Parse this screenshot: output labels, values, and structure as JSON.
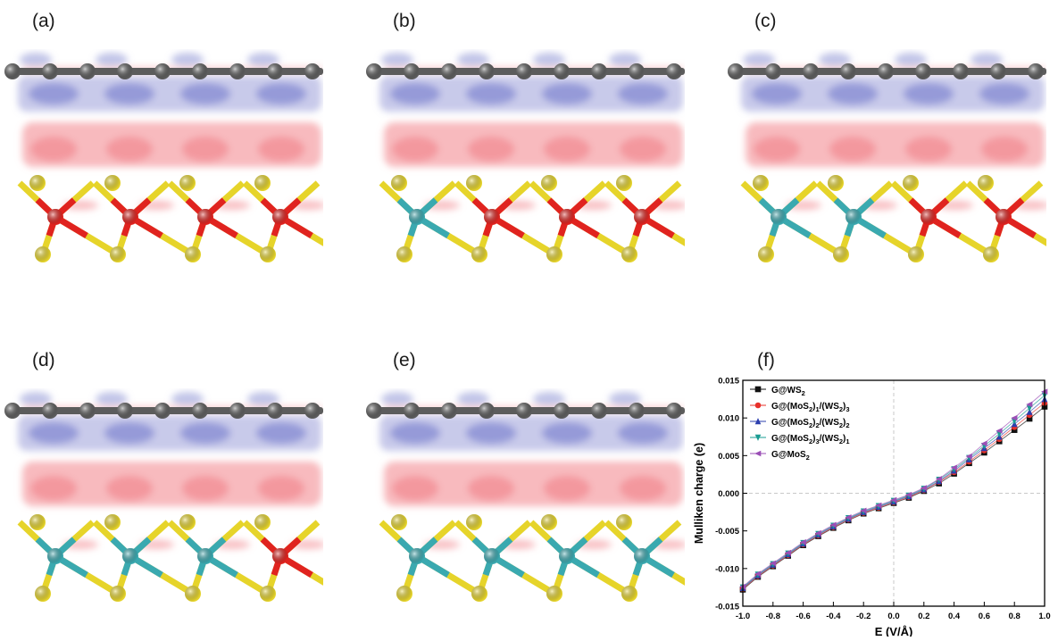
{
  "panels": [
    {
      "label": "(a)",
      "metal_sequence": [
        "Mo",
        "Mo",
        "Mo",
        "Mo"
      ]
    },
    {
      "label": "(b)",
      "metal_sequence": [
        "W",
        "Mo",
        "Mo",
        "Mo"
      ]
    },
    {
      "label": "(c)",
      "metal_sequence": [
        "W",
        "W",
        "Mo",
        "Mo"
      ]
    },
    {
      "label": "(d)",
      "metal_sequence": [
        "W",
        "W",
        "W",
        "Mo"
      ]
    },
    {
      "label": "(e)",
      "metal_sequence": [
        "W",
        "W",
        "W",
        "W"
      ]
    },
    {
      "label": "(f)"
    }
  ],
  "colors": {
    "carbon": "#5c5c5c",
    "sulfur": "#e6d42a",
    "molybdenum": "#e0231f",
    "tungsten": "#3aa9b0",
    "charge_depletion": "#9a9fd8",
    "charge_accumulation": "#f5a3a8"
  },
  "chart_data": {
    "type": "line",
    "xlabel": "E (V/Å)",
    "ylabel": "Mulliken charge (e)",
    "xlim": [
      -1.0,
      1.0
    ],
    "ylim": [
      -0.015,
      0.015
    ],
    "x_ticks": [
      "-1.0",
      "-0.8",
      "-0.6",
      "-0.4",
      "-0.2",
      "0.0",
      "0.2",
      "0.4",
      "0.6",
      "0.8",
      "1.0"
    ],
    "y_ticks": [
      "-0.015",
      "-0.010",
      "-0.005",
      "0.000",
      "0.005",
      "0.010",
      "0.015"
    ],
    "legend_position": "top-left",
    "x": [
      -1.0,
      -0.9,
      -0.8,
      -0.7,
      -0.6,
      -0.5,
      -0.4,
      -0.3,
      -0.2,
      -0.1,
      0.0,
      0.1,
      0.2,
      0.3,
      0.4,
      0.5,
      0.6,
      0.7,
      0.8,
      0.9,
      1.0
    ],
    "series": [
      {
        "name_parts": [
          [
            "G@WS",
            "n"
          ],
          [
            "2",
            "s"
          ]
        ],
        "marker": "square",
        "color": "#111111",
        "values": [
          -0.0128,
          -0.0111,
          -0.0097,
          -0.0083,
          -0.0069,
          -0.0057,
          -0.0046,
          -0.0036,
          -0.0027,
          -0.002,
          -0.0013,
          -0.0006,
          0.0003,
          0.0013,
          0.0026,
          0.004,
          0.0054,
          0.0069,
          0.0084,
          0.0099,
          0.0115
        ]
      },
      {
        "name_parts": [
          [
            "G@(MoS",
            "n"
          ],
          [
            "2",
            "s"
          ],
          [
            ")",
            "n"
          ],
          [
            "1",
            "s"
          ],
          [
            "/(WS",
            "n"
          ],
          [
            "2",
            "s"
          ],
          [
            ")",
            "n"
          ],
          [
            "3",
            "s"
          ]
        ],
        "marker": "circle",
        "color": "#e8302a",
        "values": [
          -0.0127,
          -0.011,
          -0.0096,
          -0.0082,
          -0.0068,
          -0.0056,
          -0.0045,
          -0.0035,
          -0.0026,
          -0.0019,
          -0.0012,
          -0.0005,
          0.0004,
          0.0015,
          0.0028,
          0.0042,
          0.0057,
          0.0072,
          0.0088,
          0.0104,
          0.012
        ]
      },
      {
        "name_parts": [
          [
            "G@(MoS",
            "n"
          ],
          [
            "2",
            "s"
          ],
          [
            ")",
            "n"
          ],
          [
            "2",
            "s"
          ],
          [
            "/(WS",
            "n"
          ],
          [
            "2",
            "s"
          ],
          [
            ")",
            "n"
          ],
          [
            "2",
            "s"
          ]
        ],
        "marker": "triangle-up",
        "color": "#2c3fae",
        "values": [
          -0.0126,
          -0.0109,
          -0.0095,
          -0.0081,
          -0.0067,
          -0.0055,
          -0.0044,
          -0.0034,
          -0.0025,
          -0.0018,
          -0.0011,
          -0.0004,
          0.0005,
          0.0016,
          0.003,
          0.0045,
          0.006,
          0.0075,
          0.0092,
          0.0108,
          0.0125
        ]
      },
      {
        "name_parts": [
          [
            "G@(MoS",
            "n"
          ],
          [
            "2",
            "s"
          ],
          [
            ")",
            "n"
          ],
          [
            "3",
            "s"
          ],
          [
            "/(WS",
            "n"
          ],
          [
            "2",
            "s"
          ],
          [
            ")",
            "n"
          ],
          [
            "1",
            "s"
          ]
        ],
        "marker": "triangle-down",
        "color": "#1a9c93",
        "values": [
          -0.0125,
          -0.0108,
          -0.0094,
          -0.008,
          -0.0066,
          -0.0054,
          -0.0043,
          -0.0033,
          -0.0024,
          -0.0017,
          -0.001,
          -0.0003,
          0.0006,
          0.0018,
          0.0032,
          0.0047,
          0.0063,
          0.0079,
          0.0096,
          0.0113,
          0.013
        ]
      },
      {
        "name_parts": [
          [
            "G@MoS",
            "n"
          ],
          [
            "2",
            "s"
          ]
        ],
        "marker": "triangle-left",
        "color": "#9b4fb6",
        "values": [
          -0.0124,
          -0.0107,
          -0.0093,
          -0.0079,
          -0.0065,
          -0.0053,
          -0.0042,
          -0.0032,
          -0.0023,
          -0.0016,
          -0.0009,
          -0.0002,
          0.0007,
          0.0019,
          0.0034,
          0.0049,
          0.0066,
          0.0083,
          0.01,
          0.0118,
          0.0135
        ]
      }
    ]
  }
}
